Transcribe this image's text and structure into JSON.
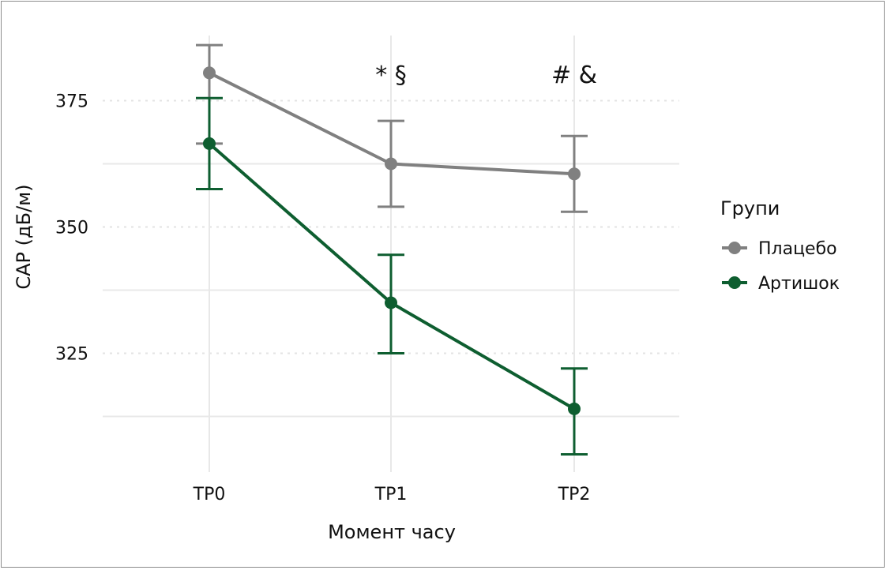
{
  "chart_data": {
    "type": "line",
    "title": "",
    "xlabel": "Момент часу",
    "ylabel": "CAP (дБ/м)",
    "categories": [
      "TP0",
      "TP1",
      "TP2"
    ],
    "yticks": [
      325,
      350,
      375
    ],
    "ylim": [
      305,
      390
    ],
    "grid": true,
    "legend": {
      "title": "Групи",
      "placement": "right"
    },
    "series": [
      {
        "name": "Плацебо",
        "color": "#808080",
        "values": [
          380.5,
          362.5,
          360.5
        ],
        "err_low": [
          366.5,
          354,
          353
        ],
        "err_high": [
          386,
          371,
          368
        ]
      },
      {
        "name": "Артишок",
        "color": "#0e5e30",
        "values": [
          366.5,
          335,
          314
        ],
        "err_low": [
          357.5,
          325,
          305
        ],
        "err_high": [
          375.5,
          344.5,
          322
        ]
      }
    ],
    "annotations": [
      {
        "category": "TP1",
        "text": "* §"
      },
      {
        "category": "TP2",
        "text": "# &"
      }
    ]
  }
}
